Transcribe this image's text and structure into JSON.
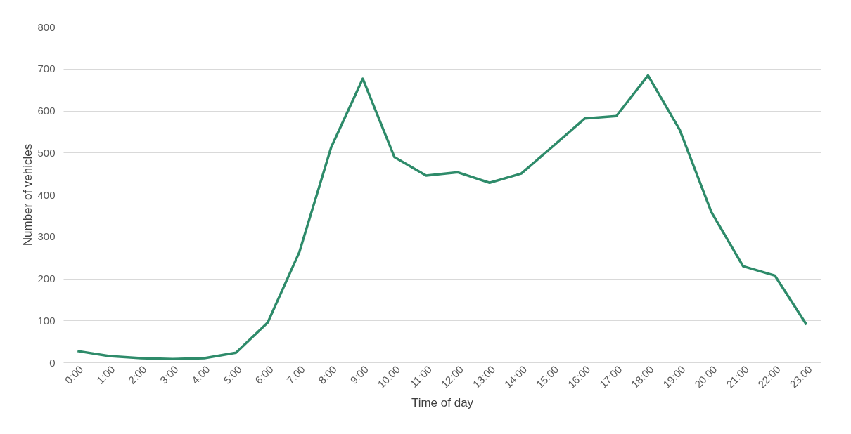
{
  "chart_data": {
    "type": "line",
    "xlabel": "Time of day",
    "ylabel": "Number of vehicles",
    "categories": [
      "0:00",
      "1:00",
      "2:00",
      "3:00",
      "4:00",
      "5:00",
      "6:00",
      "7:00",
      "8:00",
      "9:00",
      "10:00",
      "11:00",
      "12:00",
      "13:00",
      "14:00",
      "15:00",
      "16:00",
      "17:00",
      "18:00",
      "19:00",
      "20:00",
      "21:00",
      "22:00",
      "23:00"
    ],
    "series": [
      {
        "color": "#2e8b6a",
        "values": [
          27,
          15,
          10,
          8,
          10,
          23,
          95,
          263,
          512,
          676,
          489,
          445,
          453,
          428,
          450,
          515,
          581,
          587,
          684,
          554,
          358,
          229,
          207,
          90
        ]
      }
    ],
    "ylim": [
      0,
      800
    ],
    "yticks": [
      0,
      100,
      200,
      300,
      400,
      500,
      600,
      700,
      800
    ],
    "grid": "y",
    "marker": "none",
    "line_style": "solid"
  }
}
